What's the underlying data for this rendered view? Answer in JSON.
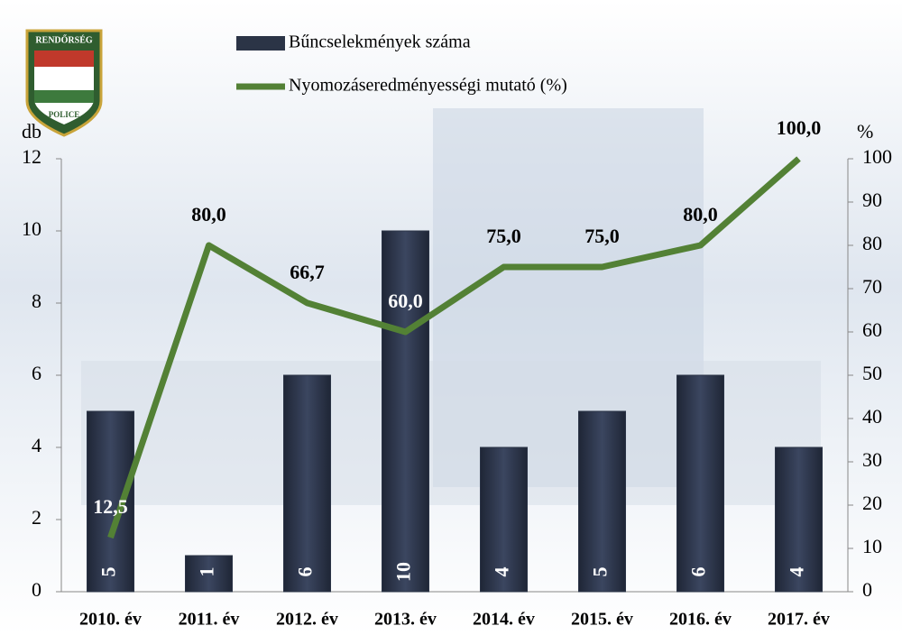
{
  "chart_data": {
    "type": "bar",
    "annotations": [
      "RENDŐRSÉG",
      "POLICE"
    ],
    "ylabel": "db",
    "y2label": "%",
    "categories": [
      "2010. év",
      "2011. év",
      "2012. év",
      "2013. év",
      "2014. év",
      "2015. év",
      "2016. év",
      "2017. év"
    ],
    "series": [
      {
        "name": "Bűncselekmények száma",
        "type": "bar",
        "color": "#2b3446",
        "values": [
          5,
          1,
          6,
          10,
          4,
          5,
          6,
          4
        ]
      },
      {
        "name": "Nyomozáseredményességi mutató (%)",
        "type": "line",
        "axis": "y2",
        "color": "#538135",
        "values": [
          12.5,
          80,
          66.7,
          60,
          75,
          75,
          80,
          100
        ],
        "value_labels": [
          "12,5",
          "80,0",
          "66,7",
          "60,0",
          "75,0",
          "75,0",
          "80,0",
          "100,0"
        ]
      }
    ],
    "ylim": [
      0,
      12
    ],
    "yticks": [
      0,
      2,
      4,
      6,
      8,
      10,
      12
    ],
    "y2lim": [
      0,
      100
    ],
    "y2ticks": [
      0,
      10,
      20,
      30,
      40,
      50,
      60,
      70,
      80,
      90,
      100
    ],
    "legend": "top"
  }
}
